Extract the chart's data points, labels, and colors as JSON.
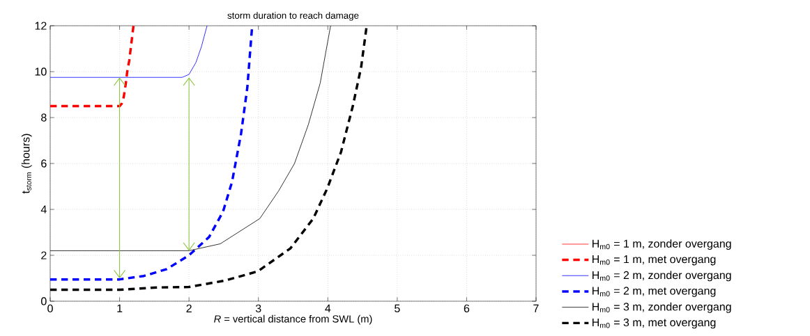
{
  "chart_data": {
    "type": "line",
    "title": "storm duration to reach damage",
    "xlabel": "*R* = vertical distance from SWL (m)",
    "ylabel": "t$_{storm}$ (hours)",
    "xlim": [
      0,
      7
    ],
    "ylim": [
      0,
      12
    ],
    "xticks": [
      0,
      1,
      2,
      3,
      4,
      5,
      6,
      7
    ],
    "yticks": [
      0,
      2,
      4,
      6,
      8,
      10,
      12
    ],
    "grid": true,
    "legend": "right",
    "series": [
      {
        "name": "H$_{m0}$ = 1 m, zonder overgang",
        "color": "#ff0000",
        "line_style": "solid"
      },
      {
        "name": "H$_{m0}$ = 1 m, met overgang",
        "color": "#ff0000",
        "line_style": "dashed",
        "x": [
          0,
          1,
          1.03,
          1.06,
          1.09,
          1.11,
          1.14,
          1.16,
          1.2
        ],
        "values": [
          8.5,
          8.5,
          8.6,
          8.9,
          9.5,
          10,
          10.5,
          11,
          12
        ]
      },
      {
        "name": "H$_{m0}$ = 2 m, zonder overgang",
        "color": "#0000ff",
        "line_style": "solid",
        "x": [
          0,
          1.9,
          2,
          2.1,
          2.18,
          2.26
        ],
        "values": [
          9.75,
          9.75,
          9.88,
          10.4,
          11.1,
          12
        ]
      },
      {
        "name": "H$_{m0}$ = 2 m, met overgang",
        "color": "#0000ff",
        "line_style": "dashed",
        "x": [
          0,
          1,
          1.35,
          1.68,
          2,
          2.29,
          2.49,
          2.62,
          2.75,
          2.84,
          2.91
        ],
        "values": [
          0.95,
          0.95,
          1.1,
          1.4,
          2.0,
          2.8,
          3.9,
          5.2,
          7.3,
          9.3,
          12
        ]
      },
      {
        "name": "H$_{m0}$ = 3 m, zonder overgang",
        "color": "#000000",
        "line_style": "solid",
        "x": [
          0,
          2,
          2.45,
          3.02,
          3.29,
          3.52,
          3.72,
          3.89,
          4.04
        ],
        "values": [
          2.2,
          2.2,
          2.5,
          3.6,
          4.8,
          6.0,
          7.7,
          9.5,
          12
        ]
      },
      {
        "name": "H$_{m0}$ = 3 m, met overgang",
        "color": "#000000",
        "line_style": "dashed",
        "x": [
          0,
          1,
          1.55,
          2,
          2.52,
          2.99,
          3.46,
          3.79,
          3.99,
          4.19,
          4.36,
          4.48,
          4.56
        ],
        "values": [
          0.5,
          0.5,
          0.6,
          0.62,
          0.9,
          1.3,
          2.3,
          3.6,
          4.9,
          6.5,
          8.5,
          10.2,
          12
        ]
      },
      {
        "color": "#8cc63f",
        "line_style": "solid",
        "x": [
          1,
          1
        ],
        "values": [
          9.75,
          1.0
        ]
      },
      {
        "color": "#8cc63f",
        "line_style": "solid",
        "x": [
          2,
          2
        ],
        "values": [
          9.75,
          2.2
        ]
      }
    ]
  }
}
